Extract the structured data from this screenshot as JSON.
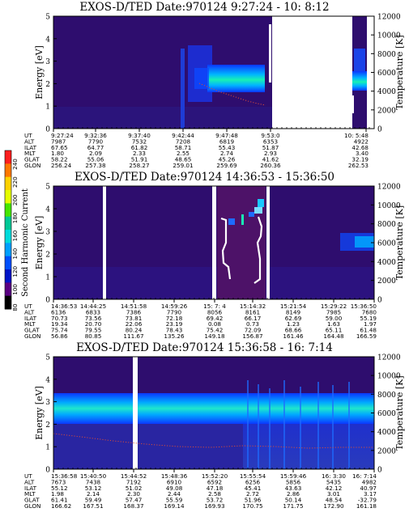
{
  "colors": {
    "background_dark": "#2e0d6e",
    "band_blue": "#0b37ff",
    "band_light": "#00b4ff",
    "band_cyan": "#19f0b4",
    "temp_dots": "#d24a3c",
    "gap": "#ffffff"
  },
  "colorbar": {
    "label": "Second Harmonic Current",
    "ticks": [
      "240",
      "220",
      "200",
      "180",
      "160",
      "140",
      "120",
      "100",
      "80"
    ],
    "colors": [
      "#ff1e1e",
      "#ff7800",
      "#ffd200",
      "#e6ff00",
      "#46e600",
      "#00c896",
      "#00dcdc",
      "#00a0ff",
      "#0050ff",
      "#0014c8",
      "#5a0082",
      "#000000"
    ]
  },
  "ephemeris_labels": [
    "UT",
    "ALT",
    "ILAT",
    "MLT",
    "GLAT",
    "GLON"
  ],
  "chart_data": [
    {
      "type": "heatmap",
      "title": "EXOS-D/TED  Date:970124  9:27:24 - 10: 8:12",
      "ylabel": "Energy [eV]",
      "y2label": "Temperature [K]",
      "ylim": [
        0,
        5
      ],
      "y2lim": [
        0,
        12000
      ],
      "yticks": [
        "0",
        "1",
        "2",
        "3",
        "4",
        "5"
      ],
      "y2ticks": [
        "0",
        "2000",
        "4000",
        "6000",
        "8000",
        "10000",
        "12000"
      ],
      "columns": [
        {
          "UT": "9:27:24",
          "ALT": "7987",
          "ILAT": "67.65",
          "MLT": "1.80",
          "GLAT": "58.22",
          "GLON": "256.24"
        },
        {
          "UT": "9:32:36",
          "ALT": "7790",
          "ILAT": "64.77",
          "MLT": "2.09",
          "GLAT": "55.06",
          "GLON": "257.38"
        },
        {
          "UT": "9:37:40",
          "ALT": "7532",
          "ILAT": "61.82",
          "MLT": "2.33",
          "GLAT": "51.91",
          "GLON": "258.27"
        },
        {
          "UT": "9:42:44",
          "ALT": "7208",
          "ILAT": "58.71",
          "MLT": "2.55",
          "GLAT": "48.65",
          "GLON": "259.01"
        },
        {
          "UT": "9:47:48",
          "ALT": "6819",
          "ILAT": "55.43",
          "MLT": "2.74",
          "GLAT": "45.26",
          "GLON": "259.69"
        },
        {
          "UT": "9:53:0",
          "ALT": "6353",
          "ILAT": "51.87",
          "MLT": "2.93",
          "GLAT": "41.62",
          "GLON": "260.36"
        },
        {
          "UT": "10: 5:48",
          "ALT": "4922",
          "ILAT": "42.68",
          "MLT": "3.40",
          "GLAT": "32.19",
          "GLON": "262.53"
        }
      ]
    },
    {
      "type": "heatmap",
      "title": "EXOS-D/TED  Date:970124  14:36:53 - 15:36:50",
      "ylabel": "Energy [eV]",
      "y2label": "Temperature [K]",
      "ylim": [
        0,
        5
      ],
      "y2lim": [
        0,
        12000
      ],
      "yticks": [
        "0",
        "1",
        "2",
        "3",
        "4",
        "5"
      ],
      "y2ticks": [
        "0",
        "2000",
        "4000",
        "6000",
        "8000",
        "10000",
        "12000"
      ],
      "columns": [
        {
          "UT": "14:36:53",
          "ALT": "6136",
          "ILAT": "70.73",
          "MLT": "19.34",
          "GLAT": "75.74",
          "GLON": "56.86"
        },
        {
          "UT": "14:44:25",
          "ALT": "6833",
          "ILAT": "73.56",
          "MLT": "20.70",
          "GLAT": "79.55",
          "GLON": "80.85"
        },
        {
          "UT": "14:51:58",
          "ALT": "7386",
          "ILAT": "73.81",
          "MLT": "22.06",
          "GLAT": "80.24",
          "GLON": "111.67"
        },
        {
          "UT": "14:59:26",
          "ALT": "7790",
          "ILAT": "72.18",
          "MLT": "23.19",
          "GLAT": "78.43",
          "GLON": "135.26"
        },
        {
          "UT": "15: 7: 4",
          "ALT": "8056",
          "ILAT": "69.42",
          "MLT": "0.08",
          "GLAT": "75.42",
          "GLON": "149.18"
        },
        {
          "UT": "15:14:32",
          "ALT": "8161",
          "ILAT": "66.17",
          "MLT": "0.73",
          "GLAT": "72.09",
          "GLON": "156.87"
        },
        {
          "UT": "15:21:54",
          "ALT": "8149",
          "ILAT": "62.69",
          "MLT": "1.23",
          "GLAT": "68.66",
          "GLON": "161.46"
        },
        {
          "UT": "15:29:22",
          "ALT": "7985",
          "ILAT": "59.00",
          "MLT": "1.63",
          "GLAT": "65.11",
          "GLON": "164.48"
        },
        {
          "UT": "15:36:50",
          "ALT": "7680",
          "ILAT": "55.19",
          "MLT": "1.97",
          "GLAT": "61.48",
          "GLON": "166.59"
        }
      ]
    },
    {
      "type": "heatmap",
      "title": "EXOS-D/TED  Date:970124  15:36:58 - 16: 7:14",
      "ylabel": "Energy [eV]",
      "y2label": "Temperature [K]",
      "ylim": [
        0,
        5
      ],
      "y2lim": [
        0,
        12000
      ],
      "yticks": [
        "0",
        "1",
        "2",
        "3",
        "4",
        "5"
      ],
      "y2ticks": [
        "0",
        "2000",
        "4000",
        "6000",
        "8000",
        "10000",
        "12000"
      ],
      "columns": [
        {
          "UT": "15:36:58",
          "ALT": "7673",
          "ILAT": "55.12",
          "MLT": "1.98",
          "GLAT": "61.41",
          "GLON": "166.62"
        },
        {
          "UT": "15:40:50",
          "ALT": "7438",
          "ILAT": "53.12",
          "MLT": "2.14",
          "GLAT": "59.49",
          "GLON": "167.51"
        },
        {
          "UT": "15:44:52",
          "ALT": "7192",
          "ILAT": "51.02",
          "MLT": "2.30",
          "GLAT": "57.47",
          "GLON": "168.37"
        },
        {
          "UT": "15:48:36",
          "ALT": "6910",
          "ILAT": "49.08",
          "MLT": "2.44",
          "GLAT": "55.59",
          "GLON": "169.14"
        },
        {
          "UT": "15:52:20",
          "ALT": "6592",
          "ILAT": "47.18",
          "MLT": "2.58",
          "GLAT": "53.72",
          "GLON": "169.93"
        },
        {
          "UT": "15:55:54",
          "ALT": "6256",
          "ILAT": "45.41",
          "MLT": "2.72",
          "GLAT": "51.96",
          "GLON": "170.75"
        },
        {
          "UT": "15:59:46",
          "ALT": "5856",
          "ILAT": "43.63",
          "MLT": "2.86",
          "GLAT": "50.14",
          "GLON": "171.75"
        },
        {
          "UT": "16: 3:30",
          "ALT": "5435",
          "ILAT": "42.12",
          "MLT": "3.01",
          "GLAT": "48.54",
          "GLON": "172.90"
        },
        {
          "UT": "16: 7:14",
          "ALT": "4982",
          "ILAT": "40.97",
          "MLT": "3.17",
          "GLAT": "-32.79",
          "GLON": "161.18"
        }
      ]
    }
  ]
}
